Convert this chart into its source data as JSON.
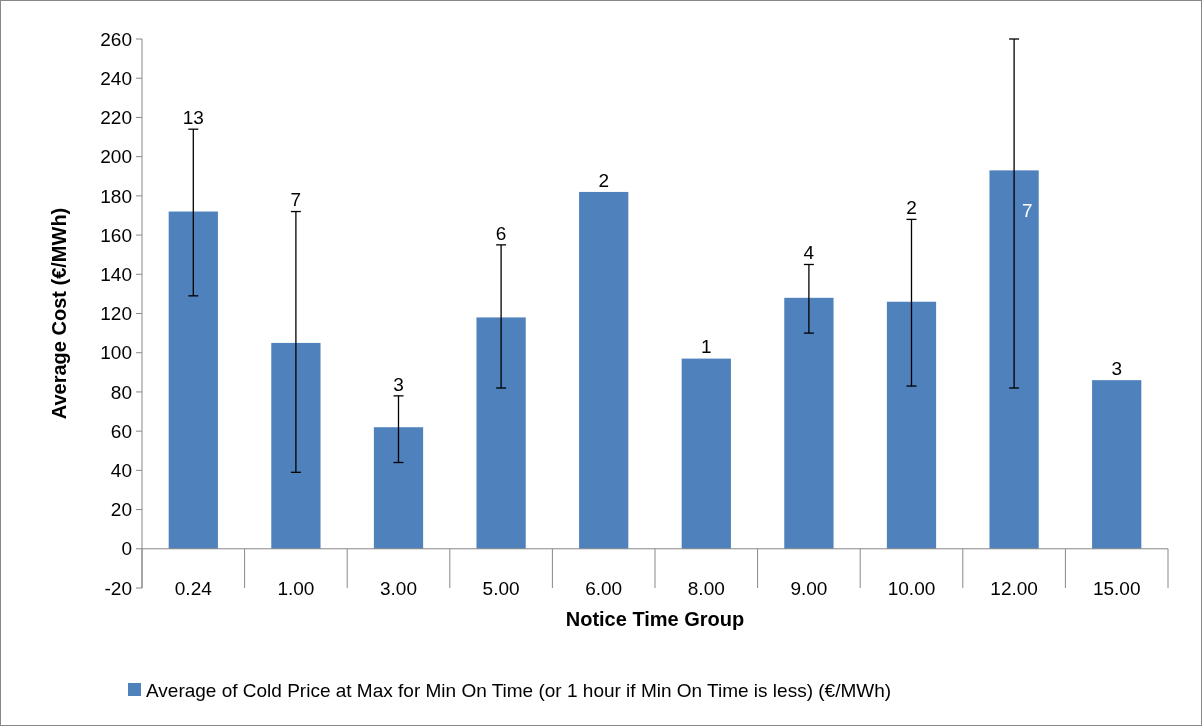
{
  "chart_data": {
    "type": "bar",
    "xlabel": "Notice Time Group",
    "ylabel": "Average Cost (€/MWh)",
    "categories": [
      "0.24",
      "1.00",
      "3.00",
      "5.00",
      "6.00",
      "8.00",
      "9.00",
      "10.00",
      "12.00",
      "15.00"
    ],
    "series": [
      {
        "name": "Average of Cold Price at Max for Min On Time (or 1 hour if Min On Time is less) (€/MWh)",
        "color": "#4f81bd",
        "values": [
          172,
          105,
          62,
          118,
          182,
          97,
          128,
          126,
          193,
          86
        ],
        "errors": [
          [
            129,
            214
          ],
          [
            39,
            172
          ],
          [
            44,
            78
          ],
          [
            82,
            155
          ],
          null,
          null,
          [
            110,
            145
          ],
          [
            83,
            168
          ],
          [
            82,
            260
          ],
          null
        ]
      }
    ],
    "annotations": [
      "13",
      "7",
      "3",
      "6",
      "2",
      "1",
      "4",
      "2",
      "7",
      "3"
    ],
    "ylim": [
      -20,
      260
    ],
    "yticks": [
      -20,
      0,
      20,
      40,
      60,
      80,
      100,
      120,
      140,
      160,
      180,
      200,
      220,
      240,
      260
    ],
    "grid": false,
    "legend": "bottom"
  }
}
